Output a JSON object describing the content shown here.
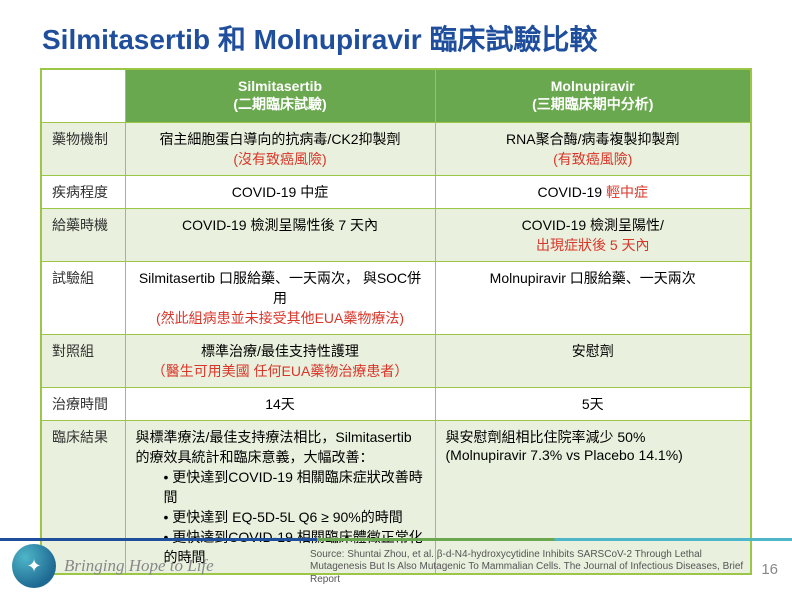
{
  "title": "Silmitasertib 和 Molnupiravir 臨床試驗比較",
  "headers": {
    "blank": "",
    "colB_line1": "Silmitasertib",
    "colB_line2": "(二期臨床試驗)",
    "colC_line1": "Molnupiravir",
    "colC_line2": "(三期臨床期中分析)"
  },
  "rows": {
    "r1": {
      "label": "藥物機制",
      "b1": "宿主細胞蛋白導向的抗病毒/CK2抑製劑",
      "b2": "(沒有致癌風險)",
      "c1": "RNA聚合酶/病毒複製抑製劑",
      "c2": "(有致癌風險)"
    },
    "r2": {
      "label": "疾病程度",
      "b": "COVID-19 中症",
      "c_pre": "COVID-19 ",
      "c_red": "輕中症"
    },
    "r3": {
      "label": "給藥時機",
      "b": "COVID-19 檢測呈陽性後 7 天內",
      "c1": "COVID-19 檢測呈陽性/",
      "c2": "出現症狀後 5 天內"
    },
    "r4": {
      "label": "試驗組",
      "b1": "Silmitasertib 口服給藥、一天兩次， 與SOC併用",
      "b2": "(然此組病患並未接受其他EUA藥物療法)",
      "c": "Molnupiravir 口服給藥、一天兩次"
    },
    "r5": {
      "label": "對照組",
      "b1": "標準治療/最佳支持性護理",
      "b2": "（醫生可用美國 任何EUA藥物治療患者）",
      "c": "安慰劑"
    },
    "r6": {
      "label": "治療時間",
      "b": "14天",
      "c": "5天"
    },
    "r7": {
      "label": "臨床結果",
      "b_lead": "與標準療法/最佳支持療法相比，Silmitasertib 的療效具統計和臨床意義，大幅改善：",
      "b_li1": "更快達到COVID-19 相關臨床症狀改善時間",
      "b_li2": "更快達到 EQ-5D-5L Q6 ≥ 90%的時間",
      "b_li3": "更快達到COVID-19 相關臨床體徵正常化的時間",
      "c1": "與安慰劑組相比住院率減少 50%",
      "c2": "(Molnupiravir 7.3% vs Placebo 14.1%)"
    }
  },
  "footer": {
    "slogan": "Bringing Hope to Life",
    "source": "Source: Shuntai Zhou, et al. β-d-N4-hydroxycytidine Inhibits SARSCoV-2 Through Lethal Mutagenesis But Is Also Mutagenic To Mammalian Cells. The Journal of Infectious Diseases, Brief Report",
    "page": "16"
  },
  "colors": {
    "title": "#1f4e9c",
    "header_bg": "#6aa84f",
    "border": "#9cc646",
    "stripe_odd": "#e9f1de",
    "red": "#d9362a"
  }
}
